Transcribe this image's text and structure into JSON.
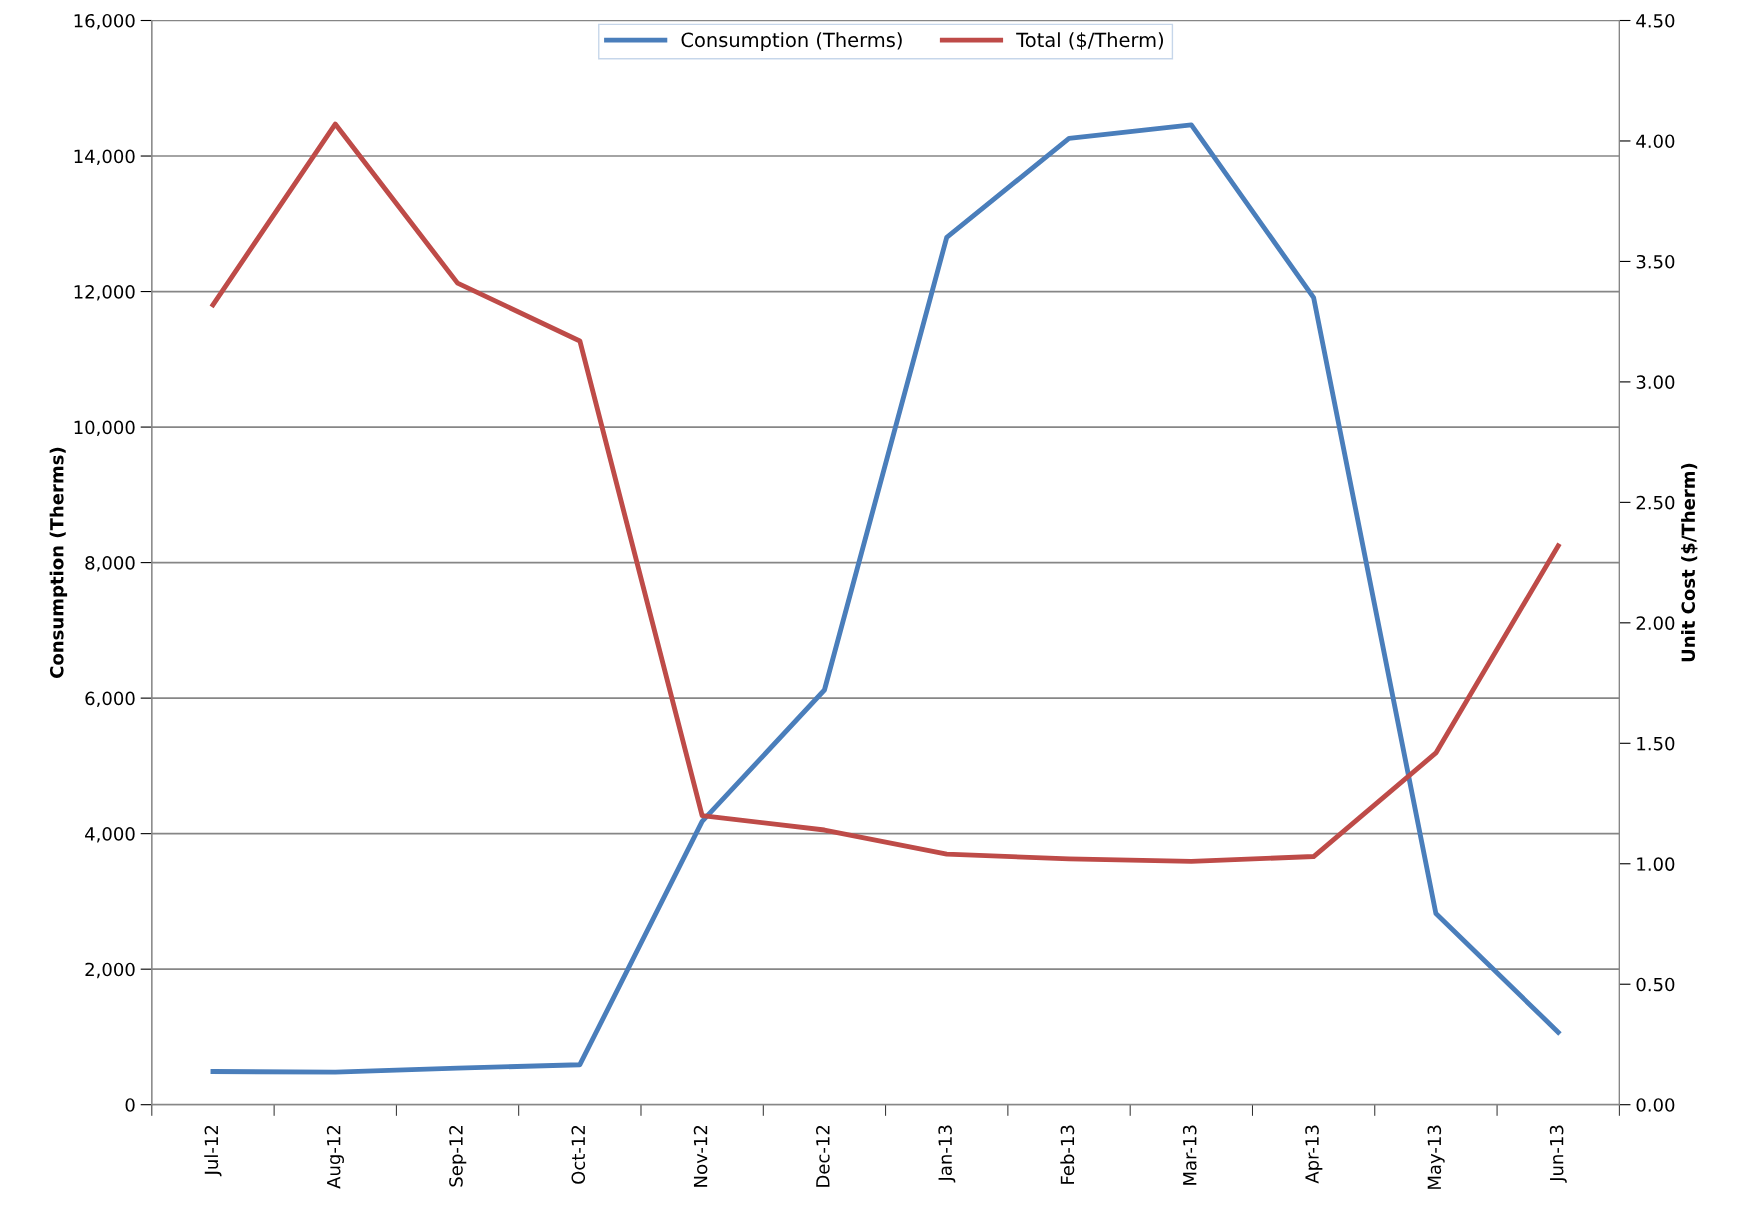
{
  "chart_data": {
    "type": "line",
    "categories": [
      "Jul-12",
      "Aug-12",
      "Sep-12",
      "Oct-12",
      "Nov-12",
      "Dec-12",
      "Jan-13",
      "Feb-13",
      "Mar-13",
      "Apr-13",
      "May-13",
      "Jun-13"
    ],
    "series": [
      {
        "name": "Consumption (Therms)",
        "color": "#4a7ebb",
        "values": [
          490,
          480,
          540,
          590,
          4180,
          6120,
          12800,
          14260,
          14460,
          11910,
          2820,
          1070
        ]
      },
      {
        "name": "Total ($/Therm)",
        "color": "#be4b48",
        "axis": "y2",
        "values": [
          3.32,
          4.07,
          3.41,
          3.17,
          1.2,
          1.14,
          1.04,
          1.02,
          1.01,
          1.03,
          1.46,
          2.32
        ]
      }
    ],
    "ylabel": "Consumption (Therms)",
    "y2label": "Unit Cost ($/Therm)",
    "ylim": [
      0,
      16000
    ],
    "yticks": [
      {
        "value": 0,
        "label": "0"
      },
      {
        "value": 2000,
        "label": "2,000"
      },
      {
        "value": 4000,
        "label": "4,000"
      },
      {
        "value": 6000,
        "label": "6,000"
      },
      {
        "value": 8000,
        "label": "8,000"
      },
      {
        "value": 10000,
        "label": "10,000"
      },
      {
        "value": 12000,
        "label": "12,000"
      },
      {
        "value": 14000,
        "label": "14,000"
      },
      {
        "value": 16000,
        "label": "16,000"
      }
    ],
    "y2lim": [
      0,
      4.5
    ],
    "y2ticks": [
      {
        "value": 0,
        "label": "0.00"
      },
      {
        "value": 0.5,
        "label": "0.50"
      },
      {
        "value": 1,
        "label": "1.00"
      },
      {
        "value": 1.5,
        "label": "1.50"
      },
      {
        "value": 2,
        "label": "2.00"
      },
      {
        "value": 2.5,
        "label": "2.50"
      },
      {
        "value": 3,
        "label": "3.00"
      },
      {
        "value": 3.5,
        "label": "3.50"
      },
      {
        "value": 4,
        "label": "4.00"
      },
      {
        "value": 4.5,
        "label": "4.50"
      }
    ],
    "grid": "y",
    "legend": "top",
    "marker": "none",
    "line_style": "solid"
  }
}
